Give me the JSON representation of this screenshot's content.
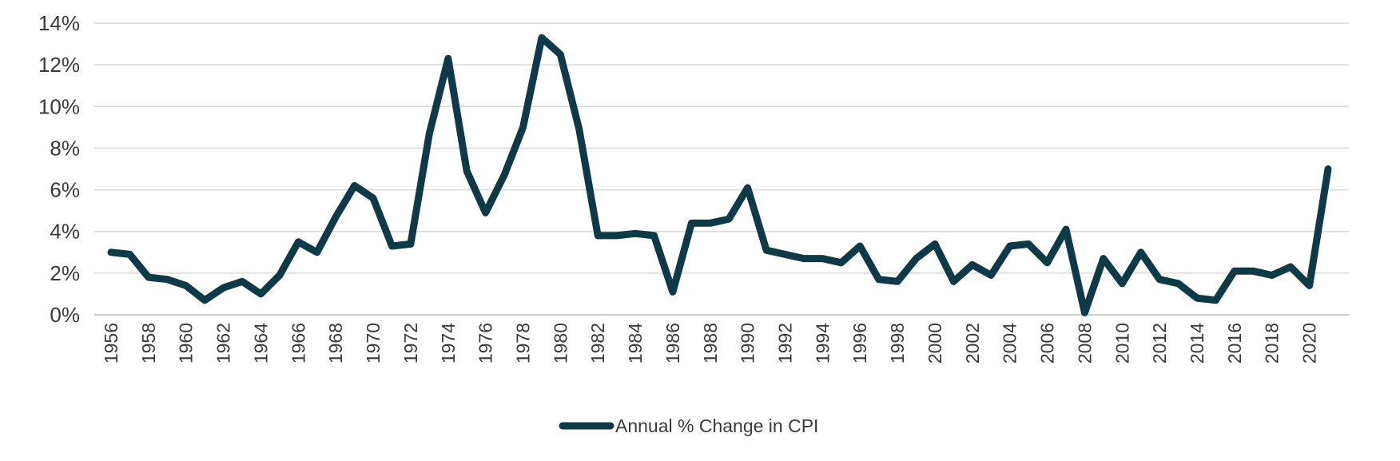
{
  "chart_data": {
    "type": "line",
    "title": "",
    "xlabel": "",
    "ylabel": "",
    "ylim": [
      0,
      14
    ],
    "yticks": [
      0,
      2,
      4,
      6,
      8,
      10,
      12,
      14
    ],
    "ytick_labels": [
      "0%",
      "2%",
      "4%",
      "6%",
      "8%",
      "10%",
      "12%",
      "14%"
    ],
    "grid": true,
    "legend_position": "bottom",
    "line_color": "#0d3a46",
    "grid_color": "#d9d9d9",
    "x": [
      1956,
      1957,
      1958,
      1959,
      1960,
      1961,
      1962,
      1963,
      1964,
      1965,
      1966,
      1967,
      1968,
      1969,
      1970,
      1971,
      1972,
      1973,
      1974,
      1975,
      1976,
      1977,
      1978,
      1979,
      1980,
      1981,
      1982,
      1983,
      1984,
      1985,
      1986,
      1987,
      1988,
      1989,
      1990,
      1991,
      1992,
      1993,
      1994,
      1995,
      1996,
      1997,
      1998,
      1999,
      2000,
      2001,
      2002,
      2003,
      2004,
      2005,
      2006,
      2007,
      2008,
      2009,
      2010,
      2011,
      2012,
      2013,
      2014,
      2015,
      2016,
      2017,
      2018,
      2019,
      2020,
      2021
    ],
    "xtick_labels": [
      "1956",
      "1958",
      "1960",
      "1962",
      "1964",
      "1966",
      "1968",
      "1970",
      "1972",
      "1974",
      "1976",
      "1978",
      "1980",
      "1982",
      "1984",
      "1986",
      "1988",
      "1990",
      "1992",
      "1994",
      "1996",
      "1998",
      "2000",
      "2002",
      "2004",
      "2006",
      "2008",
      "2010",
      "2012",
      "2014",
      "2016",
      "2018",
      "2020"
    ],
    "series": [
      {
        "name": "Annual % Change in CPI",
        "values": [
          3.0,
          2.9,
          1.8,
          1.7,
          1.4,
          0.7,
          1.3,
          1.6,
          1.0,
          1.9,
          3.5,
          3.0,
          4.7,
          6.2,
          5.6,
          3.3,
          3.4,
          8.7,
          12.3,
          6.9,
          4.9,
          6.7,
          9.0,
          13.3,
          12.5,
          8.9,
          3.8,
          3.8,
          3.9,
          3.8,
          1.1,
          4.4,
          4.4,
          4.6,
          6.1,
          3.1,
          2.9,
          2.7,
          2.7,
          2.5,
          3.3,
          1.7,
          1.6,
          2.7,
          3.4,
          1.6,
          2.4,
          1.9,
          3.3,
          3.4,
          2.5,
          4.1,
          0.1,
          2.7,
          1.5,
          3.0,
          1.7,
          1.5,
          0.8,
          0.7,
          2.1,
          2.1,
          1.9,
          2.3,
          1.4,
          7.0
        ]
      }
    ]
  }
}
